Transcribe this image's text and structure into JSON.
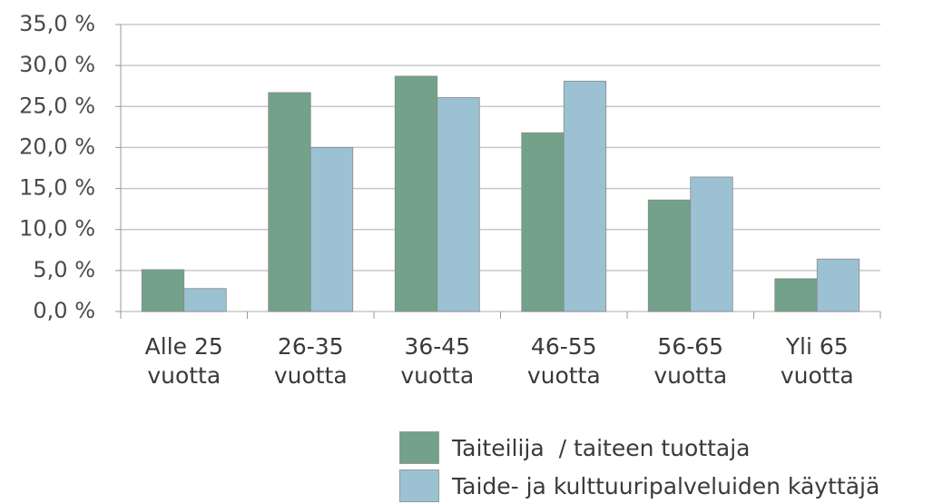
{
  "chart_data": {
    "type": "bar",
    "categories": [
      "Alle 25 vuotta",
      "26-35 vuotta",
      "36-45 vuotta",
      "46-55 vuotta",
      "56-65 vuotta",
      "Yli 65 vuotta"
    ],
    "series": [
      {
        "name": "Taiteilija  / taiteen tuottaja",
        "color": "#73a18a",
        "values": [
          5.1,
          26.7,
          28.7,
          21.8,
          13.6,
          4.0
        ]
      },
      {
        "name": "Taide- ja kulttuuripalveluiden käyttäjä",
        "color": "#9cc1d3",
        "values": [
          2.8,
          20.0,
          26.1,
          28.1,
          16.4,
          6.4
        ]
      }
    ],
    "ylim": [
      0,
      35
    ],
    "yticks": [
      {
        "value": 0,
        "label": "0,0 %"
      },
      {
        "value": 5,
        "label": "5,0 %"
      },
      {
        "value": 10,
        "label": "10,0 %"
      },
      {
        "value": 15,
        "label": "15,0 %"
      },
      {
        "value": 20,
        "label": "20,0 %"
      },
      {
        "value": 25,
        "label": "25,0 %"
      },
      {
        "value": 30,
        "label": "30,0 %"
      },
      {
        "value": 35,
        "label": "35,0 %"
      }
    ],
    "grid": true
  }
}
